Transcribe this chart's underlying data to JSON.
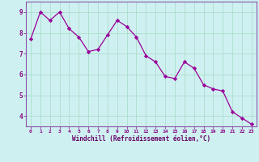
{
  "x": [
    0,
    1,
    2,
    3,
    4,
    5,
    6,
    7,
    8,
    9,
    10,
    11,
    12,
    13,
    14,
    15,
    16,
    17,
    18,
    19,
    20,
    21,
    22,
    23
  ],
  "y": [
    7.7,
    9.0,
    8.6,
    9.0,
    8.2,
    7.8,
    7.1,
    7.2,
    7.9,
    8.6,
    8.3,
    7.8,
    6.9,
    6.6,
    5.9,
    5.8,
    6.6,
    6.3,
    5.5,
    5.3,
    5.2,
    4.2,
    3.9,
    3.6
  ],
  "line_color": "#990099",
  "marker_color": "#990099",
  "bg_color": "#cff0f0",
  "plot_bg_color": "#cff0f0",
  "grid_color": "#aaddcc",
  "xlabel": "Windchill (Refroidissement éolien,°C)",
  "xlabel_color": "#660066",
  "tick_color": "#880088",
  "spine_color": "#8855aa",
  "ylim": [
    3.5,
    9.5
  ],
  "xlim": [
    -0.5,
    23.5
  ],
  "yticks": [
    4,
    5,
    6,
    7,
    8,
    9
  ],
  "xticks": [
    0,
    1,
    2,
    3,
    4,
    5,
    6,
    7,
    8,
    9,
    10,
    11,
    12,
    13,
    14,
    15,
    16,
    17,
    18,
    19,
    20,
    21,
    22,
    23
  ]
}
